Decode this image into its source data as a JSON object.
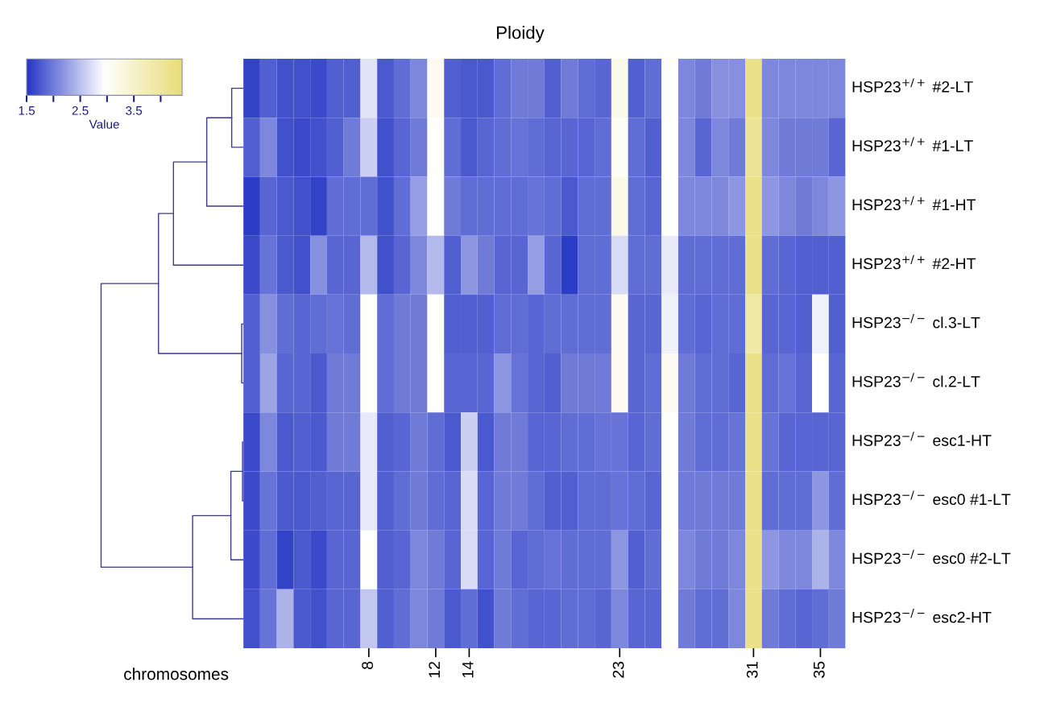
{
  "chart_data": {
    "type": "heatmap",
    "title": "Ploidy",
    "xlabel": "chromosomes",
    "clabel": "Value",
    "categories": [
      null,
      null,
      null,
      null,
      null,
      null,
      null,
      "8",
      null,
      null,
      null,
      "12",
      null,
      "14",
      null,
      null,
      null,
      null,
      null,
      null,
      null,
      null,
      "23",
      null,
      null,
      null,
      null,
      null,
      null,
      null,
      "31",
      null,
      null,
      null,
      "35",
      null
    ],
    "y_categories": [
      "HSP23$^{+/+}$ #2-LT",
      "HSP23$^{+/+}$ #1-LT",
      "HSP23$^{+/+}$ #1-HT",
      "HSP23$^{+/+}$ #2-HT",
      "HSP23$^{−/−}$ cl.3-LT",
      "HSP23$^{−/−}$ cl.2-LT",
      "HSP23$^{−/−}$ esc1-HT",
      "HSP23$^{−/−}$ esc0 #1-LT",
      "HSP23$^{−/−}$ esc0 #2-LT",
      "HSP23$^{−/−}$ esc2-HT"
    ],
    "colors": [
      "#2436c4",
      "#ffffff",
      "#e8dc78"
    ],
    "clim": [
      1.5,
      4.4
    ],
    "cticks": [
      1.5,
      {
        "value": 2,
        "label": null
      },
      2.5,
      {
        "value": 3,
        "label": null
      },
      3.5,
      {
        "value": 4,
        "label": null
      }
    ],
    "cells": [
      [
        1.6,
        1.8,
        1.7,
        1.7,
        1.65,
        1.8,
        1.8,
        2.75,
        1.75,
        1.9,
        2.1,
        3.1,
        1.8,
        1.75,
        1.75,
        1.9,
        2.0,
        2.0,
        1.8,
        2.0,
        1.9,
        1.85,
        3.2,
        1.8,
        1.9,
        3.0,
        2.1,
        2.0,
        2.15,
        2.15,
        4.2,
        2.1,
        2.1,
        2.1,
        2.1,
        2.1
      ],
      [
        1.8,
        2.1,
        1.7,
        1.65,
        1.7,
        1.8,
        2.0,
        2.6,
        1.7,
        1.85,
        2.0,
        3.0,
        1.9,
        1.75,
        1.85,
        1.9,
        1.95,
        1.9,
        1.85,
        1.85,
        1.85,
        1.9,
        3.05,
        1.9,
        1.8,
        2.95,
        2.1,
        1.85,
        2.1,
        2.0,
        4.1,
        2.1,
        2.0,
        2.0,
        2.0,
        1.85
      ],
      [
        1.55,
        1.85,
        1.75,
        1.7,
        1.6,
        1.9,
        1.9,
        1.9,
        1.7,
        1.9,
        2.25,
        2.95,
        2.0,
        1.9,
        1.9,
        1.9,
        1.9,
        1.95,
        1.9,
        1.75,
        1.9,
        1.9,
        3.2,
        1.9,
        1.85,
        3.0,
        2.1,
        2.1,
        2.1,
        2.2,
        4.2,
        2.2,
        2.1,
        2.0,
        2.1,
        2.2
      ],
      [
        1.65,
        1.95,
        1.75,
        1.7,
        2.15,
        1.85,
        1.85,
        2.45,
        1.7,
        1.85,
        2.1,
        2.45,
        1.8,
        2.2,
        2.0,
        1.85,
        1.85,
        2.25,
        1.85,
        1.55,
        1.9,
        1.9,
        2.7,
        1.9,
        1.9,
        2.8,
        1.9,
        1.9,
        1.9,
        1.9,
        4.2,
        1.9,
        1.85,
        1.8,
        1.8,
        1.8
      ],
      [
        1.8,
        2.15,
        1.9,
        1.85,
        1.9,
        1.95,
        1.9,
        3.0,
        1.9,
        2.0,
        2.0,
        3.0,
        1.8,
        1.8,
        1.8,
        1.9,
        1.9,
        1.85,
        1.9,
        1.9,
        1.9,
        1.9,
        3.1,
        1.85,
        1.85,
        2.85,
        1.9,
        1.85,
        1.9,
        1.9,
        3.9,
        1.85,
        1.85,
        1.8,
        2.85,
        1.8
      ],
      [
        1.8,
        2.3,
        1.85,
        1.85,
        1.75,
        2.0,
        2.0,
        3.0,
        1.9,
        2.0,
        2.0,
        3.0,
        1.85,
        1.85,
        1.85,
        2.2,
        1.95,
        1.85,
        1.8,
        2.0,
        2.0,
        2.0,
        3.1,
        1.85,
        1.9,
        3.1,
        2.0,
        1.9,
        1.9,
        1.85,
        4.2,
        1.9,
        1.95,
        1.85,
        2.95,
        1.85
      ],
      [
        1.65,
        2.1,
        1.75,
        1.8,
        1.75,
        2.0,
        2.0,
        2.8,
        1.8,
        1.85,
        2.0,
        1.9,
        1.75,
        2.6,
        1.75,
        2.0,
        2.0,
        1.85,
        1.85,
        1.9,
        1.9,
        1.95,
        1.95,
        1.85,
        1.9,
        3.0,
        2.0,
        1.9,
        1.9,
        1.95,
        4.2,
        1.95,
        1.85,
        1.85,
        1.85,
        1.85
      ],
      [
        1.65,
        1.95,
        1.75,
        1.75,
        1.8,
        1.85,
        1.85,
        2.8,
        1.8,
        1.9,
        2.0,
        1.9,
        1.85,
        2.7,
        1.85,
        2.0,
        2.0,
        1.9,
        1.8,
        1.8,
        1.9,
        1.9,
        1.95,
        1.9,
        1.85,
        3.0,
        2.0,
        2.0,
        2.0,
        2.0,
        4.2,
        1.9,
        1.9,
        1.9,
        2.2,
        1.9
      ],
      [
        1.65,
        1.9,
        1.6,
        1.75,
        1.65,
        1.85,
        1.85,
        2.95,
        1.8,
        1.85,
        2.1,
        2.0,
        1.85,
        2.7,
        1.85,
        2.0,
        1.85,
        1.9,
        1.95,
        1.9,
        1.9,
        1.9,
        2.2,
        1.8,
        1.9,
        3.0,
        2.1,
        2.0,
        2.0,
        2.1,
        4.2,
        2.2,
        2.1,
        2.1,
        2.4,
        2.1
      ],
      [
        1.7,
        1.95,
        2.4,
        1.75,
        1.7,
        1.85,
        1.85,
        2.55,
        1.8,
        1.9,
        2.1,
        2.0,
        1.75,
        1.9,
        1.7,
        2.0,
        1.9,
        1.85,
        1.85,
        1.9,
        1.9,
        1.85,
        2.1,
        1.85,
        1.85,
        3.0,
        2.0,
        1.9,
        1.9,
        2.1,
        4.2,
        2.0,
        1.9,
        1.85,
        1.9,
        2.0
      ]
    ]
  }
}
